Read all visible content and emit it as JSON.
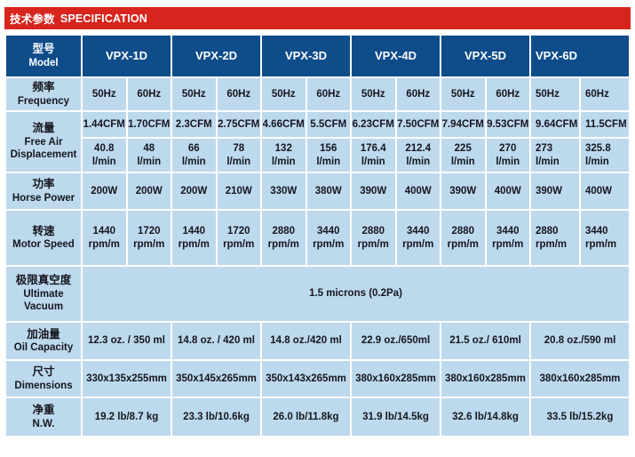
{
  "title": {
    "zh": "技术参数",
    "en": "SPECIFICATION"
  },
  "colors": {
    "accent_red": "#D7251D",
    "header_blue": "#0F4C8A",
    "cell_blue": "#BDD9EE",
    "text_dark": "#16161E"
  },
  "table": {
    "model_label": {
      "zh": "型号",
      "en": "Model"
    },
    "models": [
      "VPX-1D",
      "VPX-2D",
      "VPX-3D",
      "VPX-4D",
      "VPX-5D",
      "VPX-6D"
    ],
    "rows": {
      "frequency": {
        "label_zh": "频率",
        "label_en": "Frequency",
        "values": [
          "50Hz",
          "60Hz",
          "50Hz",
          "60Hz",
          "50Hz",
          "60Hz",
          "50Hz",
          "60Hz",
          "50Hz",
          "60Hz",
          "50Hz",
          "60Hz"
        ]
      },
      "free_air": {
        "label_zh": "流量",
        "label_en_1": "Free Air",
        "label_en_2": "Displacement",
        "cfm": [
          "1.44CFM",
          "1.70CFM",
          "2.3CFM",
          "2.75CFM",
          "4.66CFM",
          "5.5CFM",
          "6.23CFM",
          "7.50CFM",
          "7.94CFM",
          "9.53CFM",
          "9.64CFM",
          "11.5CFM"
        ],
        "lmin": [
          "40.8",
          "48",
          "66",
          "78",
          "132",
          "156",
          "176.4",
          "212.4",
          "225",
          "270",
          "273",
          "325.8"
        ],
        "lmin_unit": "l/min"
      },
      "horse_power": {
        "label_zh": "功率",
        "label_en": "Horse Power",
        "values": [
          "200W",
          "200W",
          "200W",
          "210W",
          "330W",
          "380W",
          "390W",
          "400W",
          "390W",
          "400W",
          "390W",
          "400W"
        ]
      },
      "motor_speed": {
        "label_zh": "转速",
        "label_en": "Motor Speed",
        "values": [
          "1440",
          "1720",
          "1440",
          "1720",
          "2880",
          "3440",
          "2880",
          "3440",
          "2880",
          "3440",
          "2880",
          "3440"
        ],
        "unit": "rpm/m"
      },
      "ultimate_vacuum": {
        "label_zh": "极限真空度",
        "label_en_1": "Ultimate",
        "label_en_2": "Vacuum",
        "value": "1.5 microns (0.2Pa)"
      },
      "oil_capacity": {
        "label_zh": "加油量",
        "label_en": "Oil Capacity",
        "values": [
          "12.3 oz. / 350 ml",
          "14.8 oz. / 420 ml",
          "14.8 oz./420 ml",
          "22.9 oz./650ml",
          "21.5 oz./ 610ml",
          "20.8 oz./590 ml"
        ]
      },
      "dimensions": {
        "label_zh": "尺寸",
        "label_en": "Dimensions",
        "values": [
          "330x135x255mm",
          "350x145x265mm",
          "350x143x265mm",
          "380x160x285mm",
          "380x160x285mm",
          "380x160x285mm"
        ]
      },
      "net_weight": {
        "label_zh": "净重",
        "label_en": "N.W.",
        "values": [
          "19.2 lb/8.7 kg",
          "23.3 lb/10.6kg",
          "26.0 lb/11.8kg",
          "31.9 lb/14.5kg",
          "32.6 lb/14.8kg",
          "33.5 lb/15.2kg"
        ]
      }
    }
  }
}
